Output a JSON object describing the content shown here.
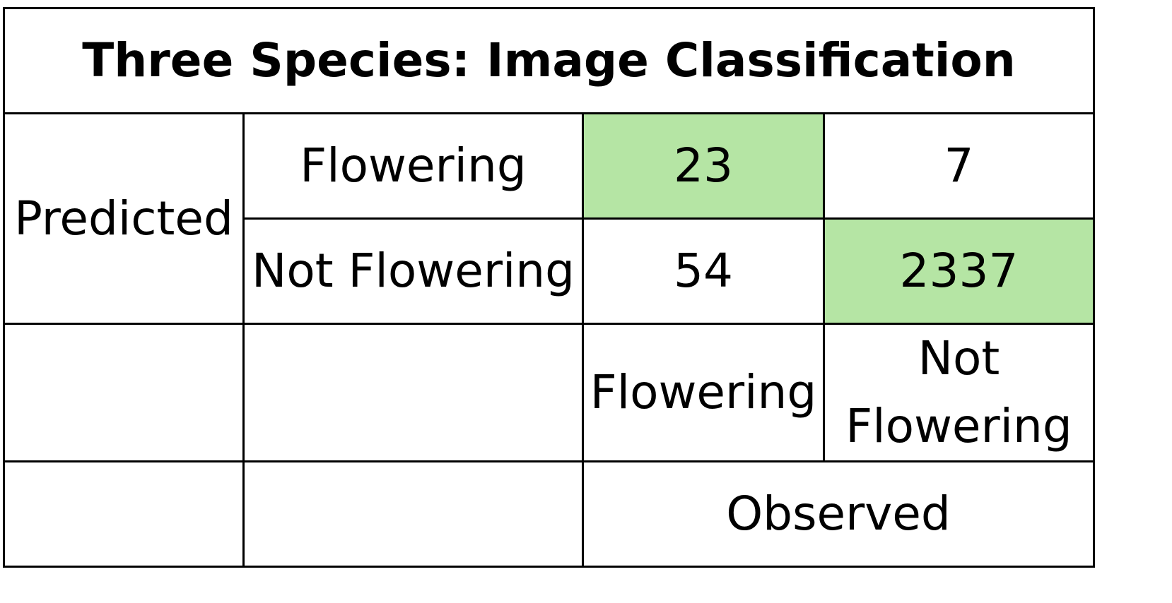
{
  "chart_data": {
    "type": "table",
    "title": "Three Species: Image Classification",
    "row_axis_label": "Predicted",
    "col_axis_label": "Observed",
    "rows": [
      "Flowering",
      "Not Flowering"
    ],
    "columns": [
      "Flowering",
      "Not\nFlowering"
    ],
    "values": [
      [
        "23",
        "7"
      ],
      [
        "54",
        "2337"
      ]
    ],
    "highlight_color": "#b5e5a4",
    "highlighted_cells": [
      [
        0,
        0
      ],
      [
        1,
        1
      ]
    ]
  }
}
